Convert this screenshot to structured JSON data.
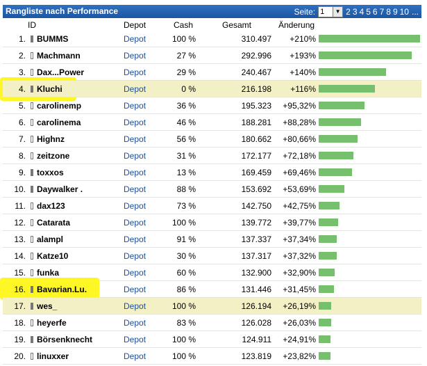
{
  "header": {
    "title": "Rangliste nach Performance",
    "page_label": "Seite:",
    "page_selected": "1",
    "pages": [
      "2",
      "3",
      "4",
      "5",
      "6",
      "7",
      "8",
      "9",
      "10"
    ],
    "ellipsis": "..."
  },
  "columns": {
    "id": "ID",
    "depot": "Depot",
    "cash": "Cash",
    "total": "Gesamt",
    "change": "Änderung"
  },
  "colors": {
    "header_bg": "#1c56a3",
    "bar": "#76c06d",
    "highlight_row": "#f2f0c4",
    "marker": "#fff500"
  },
  "rows": [
    {
      "rank": "1.",
      "name": "BUMMS",
      "depot": "Depot",
      "cash": "100 %",
      "total": "310.497",
      "change": "+210%",
      "pct": 210,
      "icon": "dark"
    },
    {
      "rank": "2.",
      "name": "Machmann",
      "depot": "Depot",
      "cash": "27 %",
      "total": "292.996",
      "change": "+193%",
      "pct": 193,
      "icon": "light"
    },
    {
      "rank": "3.",
      "name": "Dax...Power",
      "depot": "Depot",
      "cash": "29 %",
      "total": "240.467",
      "change": "+140%",
      "pct": 140,
      "icon": "light"
    },
    {
      "rank": "4.",
      "name": "Kluchi",
      "depot": "Depot",
      "cash": "0 %",
      "total": "216.198",
      "change": "+116%",
      "pct": 116,
      "icon": "dark",
      "highlight": true
    },
    {
      "rank": "5.",
      "name": "carolinemp",
      "depot": "Depot",
      "cash": "36 %",
      "total": "195.323",
      "change": "+95,32%",
      "pct": 95.32,
      "icon": "light"
    },
    {
      "rank": "6.",
      "name": "carolinema",
      "depot": "Depot",
      "cash": "46 %",
      "total": "188.281",
      "change": "+88,28%",
      "pct": 88.28,
      "icon": "light"
    },
    {
      "rank": "7.",
      "name": "Highnz",
      "depot": "Depot",
      "cash": "56 %",
      "total": "180.662",
      "change": "+80,66%",
      "pct": 80.66,
      "icon": "light"
    },
    {
      "rank": "8.",
      "name": "zeitzone",
      "depot": "Depot",
      "cash": "31 %",
      "total": "172.177",
      "change": "+72,18%",
      "pct": 72.18,
      "icon": "light"
    },
    {
      "rank": "9.",
      "name": "toxxos",
      "depot": "Depot",
      "cash": "13 %",
      "total": "169.459",
      "change": "+69,46%",
      "pct": 69.46,
      "icon": "dark"
    },
    {
      "rank": "10.",
      "name": "Daywalker .",
      "depot": "Depot",
      "cash": "88 %",
      "total": "153.692",
      "change": "+53,69%",
      "pct": 53.69,
      "icon": "dark"
    },
    {
      "rank": "11.",
      "name": "dax123",
      "depot": "Depot",
      "cash": "73 %",
      "total": "142.750",
      "change": "+42,75%",
      "pct": 42.75,
      "icon": "light"
    },
    {
      "rank": "12.",
      "name": "Catarata",
      "depot": "Depot",
      "cash": "100 %",
      "total": "139.772",
      "change": "+39,77%",
      "pct": 39.77,
      "icon": "light"
    },
    {
      "rank": "13.",
      "name": "alampl",
      "depot": "Depot",
      "cash": "91 %",
      "total": "137.337",
      "change": "+37,34%",
      "pct": 37.34,
      "icon": "light"
    },
    {
      "rank": "14.",
      "name": "Katze10",
      "depot": "Depot",
      "cash": "30 %",
      "total": "137.317",
      "change": "+37,32%",
      "pct": 37.32,
      "icon": "light"
    },
    {
      "rank": "15.",
      "name": "funka",
      "depot": "Depot",
      "cash": "60 %",
      "total": "132.900",
      "change": "+32,90%",
      "pct": 32.9,
      "icon": "light"
    },
    {
      "rank": "16.",
      "name": "Bavarian.Lu.",
      "depot": "Depot",
      "cash": "86 %",
      "total": "131.446",
      "change": "+31,45%",
      "pct": 31.45,
      "icon": "dark"
    },
    {
      "rank": "17.",
      "name": "wes_",
      "depot": "Depot",
      "cash": "100 %",
      "total": "126.194",
      "change": "+26,19%",
      "pct": 26.19,
      "icon": "dark",
      "highlight": true
    },
    {
      "rank": "18.",
      "name": "heyerfe",
      "depot": "Depot",
      "cash": "83 %",
      "total": "126.028",
      "change": "+26,03%",
      "pct": 26.03,
      "icon": "light"
    },
    {
      "rank": "19.",
      "name": "Börsenknecht",
      "depot": "Depot",
      "cash": "100 %",
      "total": "124.911",
      "change": "+24,91%",
      "pct": 24.91,
      "icon": "dark"
    },
    {
      "rank": "20.",
      "name": "linuxxer",
      "depot": "Depot",
      "cash": "100 %",
      "total": "123.819",
      "change": "+23,82%",
      "pct": 23.82,
      "icon": "light"
    }
  ]
}
